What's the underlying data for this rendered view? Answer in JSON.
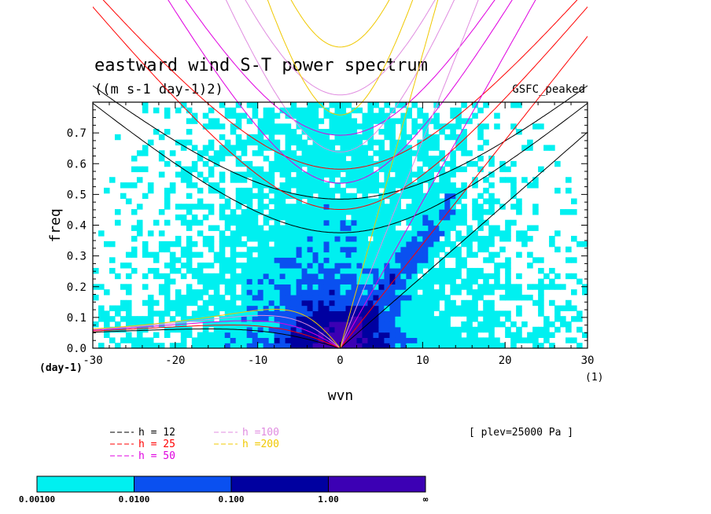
{
  "chart_data": {
    "type": "heatmap",
    "title": "eastward wind S-T power spectrum",
    "subtitle": "((m s-1 day-1)2)",
    "model_label": "GSFC_peaked",
    "xlabel": "wvn",
    "ylabel": "freq",
    "x_unit": "(1)",
    "y_unit": "(day-1)",
    "xlim": [
      -30,
      30
    ],
    "ylim": [
      0,
      0.8
    ],
    "x_ticks": [
      "-30",
      "-20",
      "-10",
      "0",
      "10",
      "20",
      "30"
    ],
    "y_ticks": [
      "0.0",
      "0.1",
      "0.2",
      "0.3",
      "0.4",
      "0.5",
      "0.6",
      "0.7"
    ],
    "annotation": "[ plev=25000 Pa ]",
    "colorbar": {
      "labels": [
        "0.00100",
        "0.0100",
        "0.100",
        "1.00",
        "∞"
      ],
      "colors": [
        "#00f0f0",
        "#0a50f0",
        "#0000a0",
        "#3c00b4"
      ]
    },
    "legend": [
      {
        "label": "h = 12",
        "color": "#000000"
      },
      {
        "label": "h = 25",
        "color": "#ff0000"
      },
      {
        "label": "h = 50",
        "color": "#e000e0"
      },
      {
        "label": "h =100",
        "color": "#e08ce0"
      },
      {
        "label": "h =200",
        "color": "#f0c800"
      }
    ],
    "dispersion_curves": {
      "depths_m": [
        12,
        25,
        50,
        100,
        200
      ],
      "families": [
        "kelvin",
        "n1_rossby",
        "n1_inertia_gravity",
        "n2_inertia_gravity"
      ]
    }
  }
}
